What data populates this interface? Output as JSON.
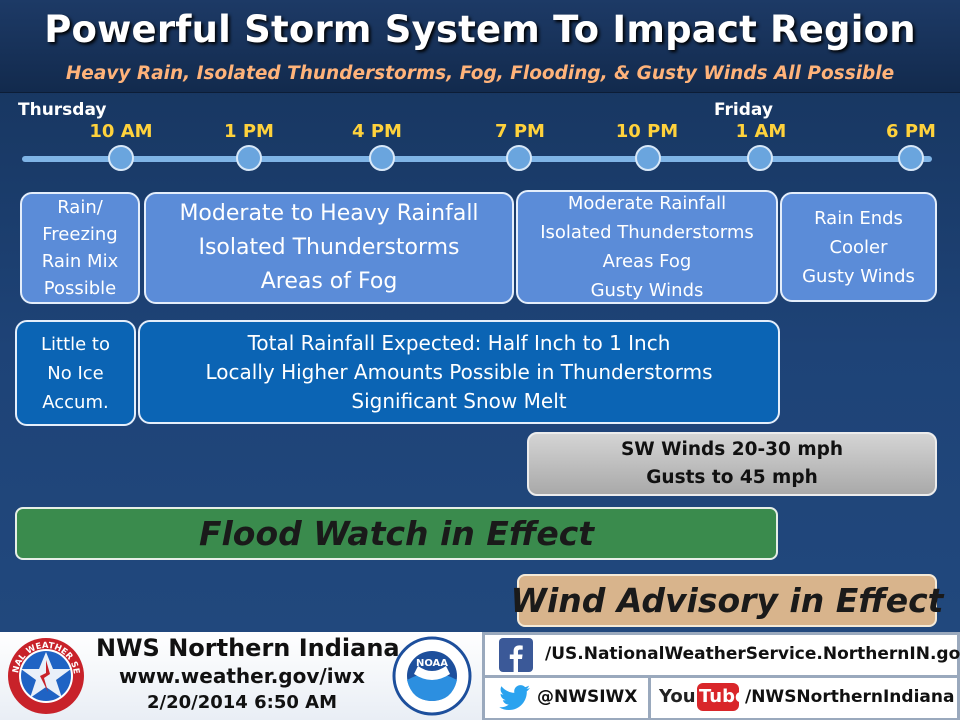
{
  "header": {
    "title": "Powerful Storm System To Impact Region",
    "subtitle": "Heavy Rain, Isolated Thunderstorms, Fog, Flooding, & Gusty Winds All Possible"
  },
  "timeline": {
    "days": [
      "Thursday",
      "Friday"
    ],
    "times": [
      "10 AM",
      "1 PM",
      "4 PM",
      "7 PM",
      "10 PM",
      "1 AM",
      "6 PM"
    ]
  },
  "periods": [
    {
      "lines": [
        "Rain/",
        "Freezing",
        "Rain Mix",
        "Possible"
      ]
    },
    {
      "lines": [
        "Moderate to Heavy Rainfall",
        "Isolated Thunderstorms",
        "Areas of Fog"
      ]
    },
    {
      "lines": [
        "Moderate Rainfall",
        "Isolated Thunderstorms",
        "Areas Fog",
        "Gusty Winds"
      ]
    },
    {
      "lines": [
        "Rain Ends",
        "Cooler",
        "Gusty Winds"
      ]
    }
  ],
  "ice": {
    "lines": [
      "Little to",
      "No Ice",
      "Accum."
    ]
  },
  "rainfall": {
    "lines": [
      "Total Rainfall Expected: Half Inch to 1 Inch",
      "Locally Higher Amounts Possible in Thunderstorms",
      "Significant Snow Melt"
    ]
  },
  "winds": {
    "lines": [
      "SW Winds 20-30 mph",
      "Gusts to 45 mph"
    ]
  },
  "alerts": {
    "flood": "Flood Watch in Effect",
    "wind": "Wind Advisory in Effect"
  },
  "footer": {
    "office": "NWS Northern Indiana",
    "website": "www.weather.gov/iwx",
    "timestamp": "2/20/2014 6:50 AM",
    "nws_seal_text": "NATIONAL WEATHER SERVICE",
    "noaa_text": "NOAA",
    "facebook": "/US.NationalWeatherService.NorthernIN.gov",
    "twitter": "@NWSIWX",
    "youtube_logo": "YouTube",
    "youtube": "/NWSNorthernIndiana"
  },
  "colors": {
    "background": "#1e4377",
    "subtitle": "#ffb37a",
    "time_labels": "#ffd23c",
    "flood_watch": "#3a8b4d",
    "wind_advisory": "#d8b48c",
    "box_light": "#5b8cd8",
    "box_dark": "#0b64b4"
  },
  "icons": [
    "nws-seal-icon",
    "noaa-logo-icon",
    "facebook-icon",
    "twitter-icon",
    "youtube-icon"
  ]
}
